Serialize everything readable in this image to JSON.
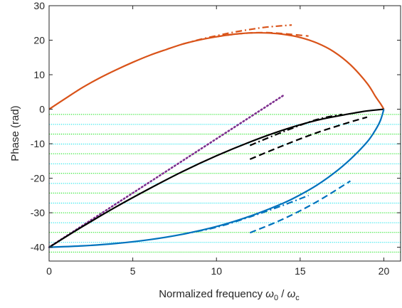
{
  "chart_data": {
    "type": "line",
    "title": "",
    "xlabel": {
      "prefix": "Normalized frequency ",
      "num_symbol": "ω",
      "num_sub": "0",
      "separator": " / ",
      "den_symbol": "ω",
      "den_sub": "c"
    },
    "ylabel": "Phase (rad)",
    "xlim": [
      0,
      21
    ],
    "ylim": [
      -44,
      30
    ],
    "xticks": [
      0,
      5,
      10,
      15,
      20
    ],
    "yticks": [
      -40,
      -30,
      -20,
      -10,
      0,
      10,
      20,
      30
    ],
    "grid": false,
    "legend": "none",
    "reference_lines": {
      "green_y": [
        -1.5,
        -7.2,
        -12.9,
        -18.6,
        -24.3,
        -30.0,
        -35.7,
        -41.4
      ],
      "cyan_y": [
        -4.4,
        -10.1,
        -15.8,
        -21.5,
        -27.2,
        -32.9,
        -38.6
      ],
      "x_range": [
        0,
        21
      ],
      "green_color": "#00e000",
      "cyan_color": "#00e0e8"
    },
    "series": [
      {
        "color": "#d95319",
        "style": "solid",
        "x": [
          0,
          1,
          2,
          3,
          4,
          5,
          6,
          7,
          8,
          9,
          10,
          11,
          12,
          13,
          14,
          15,
          16,
          17,
          18,
          19,
          19.5,
          19.8,
          20
        ],
        "y": [
          0,
          3.2,
          6.3,
          9.0,
          11.4,
          13.6,
          15.6,
          17.3,
          18.9,
          20.1,
          21.0,
          21.7,
          22.1,
          22.1,
          21.7,
          20.8,
          19.2,
          16.7,
          12.9,
          7.5,
          3.7,
          1.6,
          0
        ]
      },
      {
        "color": "#d95319",
        "style": "dashdot",
        "x": [
          8,
          9,
          10,
          11,
          12,
          13,
          14.5
        ],
        "y": [
          18.9,
          20.2,
          21.3,
          22.3,
          23.1,
          23.8,
          24.4
        ]
      },
      {
        "color": "#d95319",
        "style": "dashed",
        "x": [
          10,
          11,
          12,
          13,
          14,
          15.5
        ],
        "y": [
          21.0,
          21.7,
          22.1,
          22.2,
          21.9,
          21.2
        ]
      },
      {
        "color": "#7e2f8e",
        "style": "dotted",
        "x": [
          0,
          14
        ],
        "y": [
          -40,
          4.0
        ]
      },
      {
        "color": "#000000",
        "style": "solid",
        "x": [
          0,
          2,
          4,
          6,
          8,
          10,
          12,
          14,
          16,
          18,
          19,
          20
        ],
        "y": [
          -40,
          -34.0,
          -28.3,
          -23.0,
          -18.0,
          -13.5,
          -9.5,
          -6.0,
          -3.2,
          -1.3,
          -0.5,
          0
        ]
      },
      {
        "color": "#000000",
        "style": "dashdot",
        "x": [
          12,
          14,
          16,
          17.5
        ],
        "y": [
          -10.5,
          -6.5,
          -3.0,
          -1.5
        ]
      },
      {
        "color": "#000000",
        "style": "dashed",
        "x": [
          12,
          14,
          16,
          18,
          19
        ],
        "y": [
          -14.5,
          -10.5,
          -6.8,
          -3.7,
          -2.3
        ]
      },
      {
        "color": "#0072bd",
        "style": "solid",
        "x": [
          0,
          2,
          4,
          6,
          8,
          10,
          12,
          14,
          15,
          16,
          17,
          18,
          19,
          19.5,
          19.8,
          20
        ],
        "y": [
          -40,
          -39.6,
          -38.9,
          -37.8,
          -36.2,
          -34.0,
          -31.0,
          -27.2,
          -24.8,
          -22.0,
          -18.6,
          -14.5,
          -9.5,
          -6.0,
          -3.2,
          0
        ]
      },
      {
        "color": "#0072bd",
        "style": "dashdot",
        "x": [
          8,
          10,
          12,
          14,
          15.5
        ],
        "y": [
          -36.2,
          -34.2,
          -31.2,
          -27.8,
          -25.0
        ]
      },
      {
        "color": "#0072bd",
        "style": "dashed",
        "x": [
          12,
          14,
          16,
          18
        ],
        "y": [
          -35.8,
          -31.8,
          -26.8,
          -20.8
        ]
      }
    ]
  }
}
